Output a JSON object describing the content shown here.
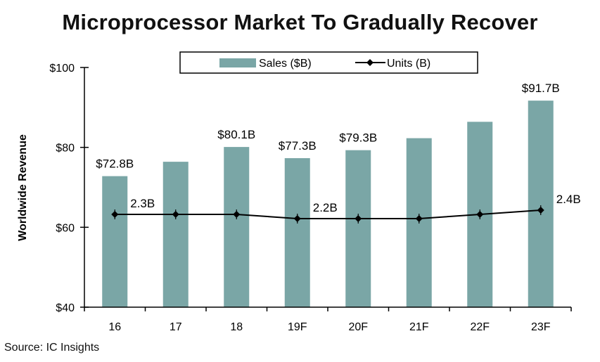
{
  "source": "Source:  IC Insights",
  "chart_data": {
    "type": "bar",
    "title": "Microprocessor Market To Gradually Recover",
    "ylabel": "Worldwide Revenue",
    "xlabel": "",
    "categories": [
      "16",
      "17",
      "18",
      "19F",
      "20F",
      "21F",
      "22F",
      "23F"
    ],
    "ylim": [
      40,
      100
    ],
    "yticks": [
      "$40",
      "$60",
      "$80",
      "$100"
    ],
    "series": [
      {
        "name": "Sales ($B)",
        "type": "bar",
        "color": "#7aa6a6",
        "values": [
          72.8,
          76.4,
          80.1,
          77.3,
          79.3,
          82.3,
          86.4,
          91.7
        ],
        "labels": [
          "$72.8B",
          "",
          "$80.1B",
          "$77.3B",
          "$79.3B",
          "",
          "",
          "$91.7B"
        ]
      },
      {
        "name": "Units (B)",
        "type": "line",
        "color": "#000000",
        "values": [
          2.3,
          2.3,
          2.3,
          2.2,
          2.2,
          2.2,
          2.3,
          2.4
        ],
        "labels": [
          "2.3B",
          "",
          "",
          "2.2B",
          "",
          "",
          "",
          "2.4B"
        ]
      }
    ],
    "legend": "top"
  }
}
